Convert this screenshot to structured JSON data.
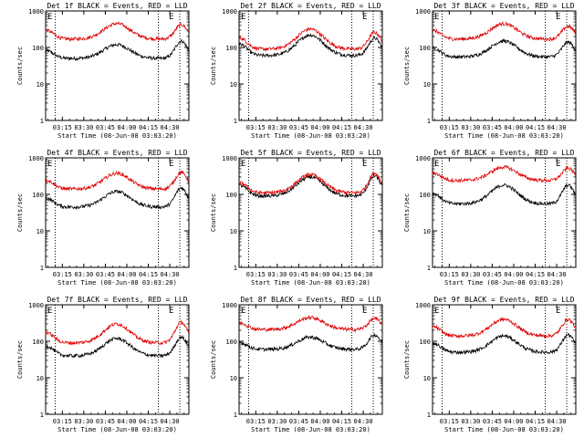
{
  "xaxis": {
    "label": "Start Time (08-Jun-08 03:03:20)",
    "ticks": [
      "03:15",
      "03:30",
      "03:45",
      "04:00",
      "04:15",
      "04:30"
    ],
    "tick_minutes": [
      15,
      30,
      45,
      60,
      75,
      90
    ],
    "xlim_minutes": [
      3.33,
      103.33
    ],
    "vline_minutes": [
      10,
      82,
      97
    ]
  },
  "yaxis": {
    "label": "Counts/sec",
    "scale": "log",
    "ylim": [
      1,
      1000
    ],
    "ticks": [
      "1",
      "10",
      "100",
      "1000"
    ],
    "tick_values": [
      1,
      10,
      100,
      1000
    ]
  },
  "corner_marks": [
    "E",
    "E"
  ],
  "colors": {
    "events": "#000000",
    "lld": "#e00000"
  },
  "chart_data": [
    {
      "type": "line",
      "title": "Det 1f BLACK = Events, RED = LLD",
      "x_unit": "minutes after 03:00",
      "series": [
        {
          "name": "BLACK = Events",
          "min": 50,
          "peak": 120,
          "end": 150
        },
        {
          "name": "RED = LLD",
          "min": 170,
          "peak": 450,
          "end": 420
        }
      ]
    },
    {
      "type": "line",
      "title": "Det 2f BLACK = Events, RED = LLD",
      "x_unit": "minutes after 03:00",
      "series": [
        {
          "name": "BLACK = Events",
          "min": 60,
          "peak": 220,
          "end": 180
        },
        {
          "name": "RED = LLD",
          "min": 90,
          "peak": 320,
          "end": 260
        }
      ]
    },
    {
      "type": "line",
      "title": "Det 3f BLACK = Events, RED = LLD",
      "x_unit": "minutes after 03:00",
      "series": [
        {
          "name": "BLACK = Events",
          "min": 55,
          "peak": 150,
          "end": 140
        },
        {
          "name": "RED = LLD",
          "min": 170,
          "peak": 450,
          "end": 380
        }
      ]
    },
    {
      "type": "line",
      "title": "Det 4f BLACK = Events, RED = LLD",
      "x_unit": "minutes after 03:00",
      "series": [
        {
          "name": "BLACK = Events",
          "min": 45,
          "peak": 120,
          "end": 150
        },
        {
          "name": "RED = LLD",
          "min": 140,
          "peak": 380,
          "end": 400
        }
      ]
    },
    {
      "type": "line",
      "title": "Det 5f BLACK = Events, RED = LLD",
      "x_unit": "minutes after 03:00",
      "series": [
        {
          "name": "BLACK = Events",
          "min": 90,
          "peak": 300,
          "end": 320
        },
        {
          "name": "RED = LLD",
          "min": 110,
          "peak": 350,
          "end": 380
        }
      ]
    },
    {
      "type": "line",
      "title": "Det 6f BLACK = Events, RED = LLD",
      "x_unit": "minutes after 03:00",
      "series": [
        {
          "name": "BLACK = Events",
          "min": 55,
          "peak": 180,
          "end": 180
        },
        {
          "name": "RED = LLD",
          "min": 240,
          "peak": 560,
          "end": 520
        }
      ]
    },
    {
      "type": "line",
      "title": "Det 7f BLACK = Events, RED = LLD",
      "x_unit": "minutes after 03:00",
      "series": [
        {
          "name": "BLACK = Events",
          "min": 40,
          "peak": 120,
          "end": 130
        },
        {
          "name": "RED = LLD",
          "min": 90,
          "peak": 300,
          "end": 330
        }
      ]
    },
    {
      "type": "line",
      "title": "Det 8f BLACK = Events, RED = LLD",
      "x_unit": "minutes after 03:00",
      "series": [
        {
          "name": "BLACK = Events",
          "min": 60,
          "peak": 130,
          "end": 150
        },
        {
          "name": "RED = LLD",
          "min": 210,
          "peak": 450,
          "end": 420
        }
      ]
    },
    {
      "type": "line",
      "title": "Det 9f BLACK = Events, RED = LLD",
      "x_unit": "minutes after 03:00",
      "series": [
        {
          "name": "BLACK = Events",
          "min": 50,
          "peak": 140,
          "end": 150
        },
        {
          "name": "RED = LLD",
          "min": 140,
          "peak": 400,
          "end": 400
        }
      ]
    }
  ]
}
